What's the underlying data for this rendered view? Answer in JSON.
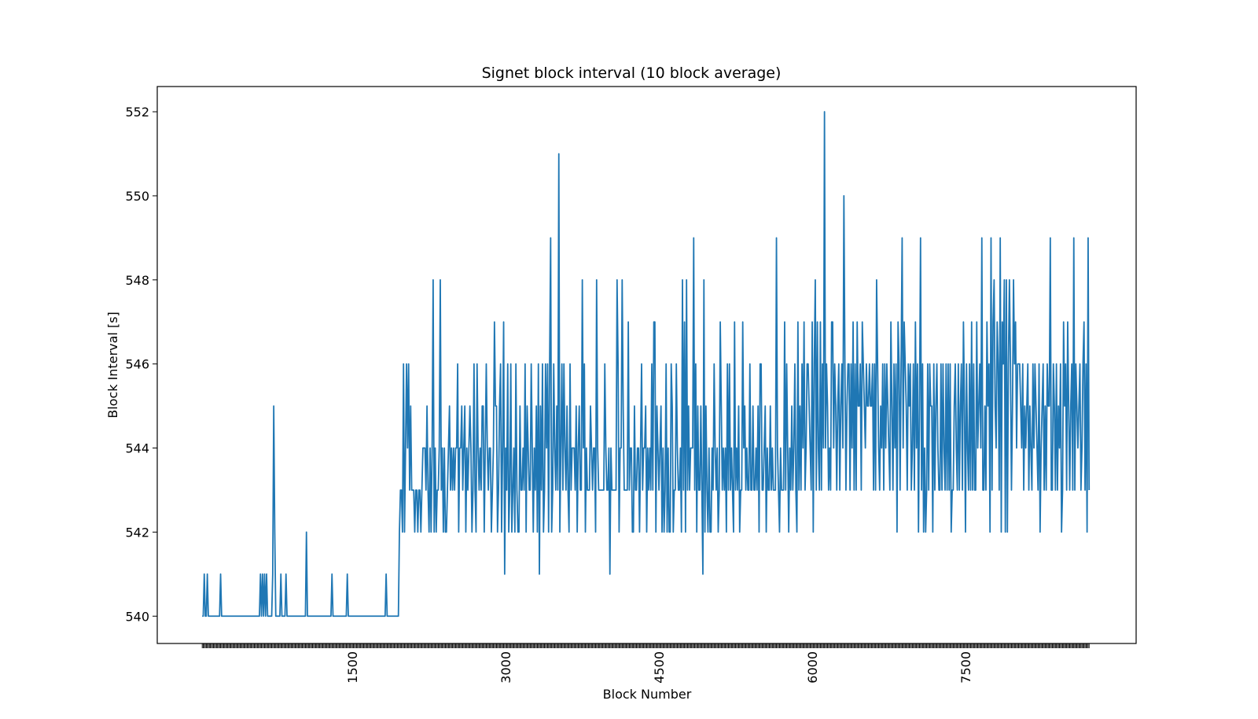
{
  "chart_data": {
    "type": "line",
    "title": "Signet block interval (10 block average)",
    "xlabel": "Block Number",
    "ylabel": "Block Interval [s]",
    "xlim": [
      -410,
      9170
    ],
    "ylim": [
      539.35,
      552.6
    ],
    "xticks": [
      1500,
      3000,
      4500,
      6000,
      7500
    ],
    "xtick_labels": [
      "1500",
      "3000",
      "4500",
      "6000",
      "7500"
    ],
    "yticks": [
      540,
      542,
      544,
      546,
      548,
      550,
      552
    ],
    "ytick_labels": [
      "540",
      "542",
      "544",
      "546",
      "548",
      "550",
      "552"
    ],
    "x_start": 30,
    "x_step": 10,
    "line_color": "#1f77b4",
    "grid": false,
    "series": [
      {
        "values": [
          540,
          540,
          541,
          540,
          540,
          541,
          540,
          540,
          540,
          540,
          540,
          540,
          540,
          540,
          540,
          540,
          540,
          540,
          541,
          540,
          540,
          540,
          540,
          540,
          540,
          540,
          540,
          540,
          540,
          540,
          540,
          540,
          540,
          540,
          540,
          540,
          540,
          540,
          540,
          540,
          540,
          540,
          540,
          540,
          540,
          540,
          540,
          540,
          540,
          540,
          540,
          540,
          540,
          540,
          540,
          540,
          540,
          541,
          540,
          541,
          540,
          541,
          540,
          541,
          540,
          540,
          540,
          540,
          540,
          541,
          545,
          542,
          540,
          540,
          540,
          540,
          540,
          541,
          540,
          540,
          540,
          540,
          541,
          540,
          540,
          540,
          540,
          540,
          540,
          540,
          540,
          540,
          540,
          540,
          540,
          540,
          540,
          540,
          540,
          540,
          540,
          540,
          542,
          540,
          540,
          540,
          540,
          540,
          540,
          540,
          540,
          540,
          540,
          540,
          540,
          540,
          540,
          540,
          540,
          540,
          540,
          540,
          540,
          540,
          540,
          540,
          540,
          541,
          540,
          540,
          540,
          540,
          540,
          540,
          540,
          540,
          540,
          540,
          540,
          540,
          540,
          540,
          541,
          540,
          540,
          540,
          540,
          540,
          540,
          540,
          540,
          540,
          540,
          540,
          540,
          540,
          540,
          540,
          540,
          540,
          540,
          540,
          540,
          540,
          540,
          540,
          540,
          540,
          540,
          540,
          540,
          540,
          540,
          540,
          540,
          540,
          540,
          540,
          540,
          540,
          541,
          540,
          540,
          540,
          540,
          540,
          540,
          540,
          540,
          540,
          540,
          540,
          540,
          542,
          543,
          543,
          542,
          546,
          542,
          544,
          546,
          544,
          546,
          543,
          545,
          543,
          543,
          543,
          542,
          543,
          543,
          542,
          543,
          543,
          542,
          543,
          544,
          544,
          544,
          543,
          545,
          543,
          542,
          544,
          542,
          544,
          548,
          542,
          544,
          542,
          543,
          543,
          544,
          548,
          543,
          544,
          542,
          544,
          542,
          542,
          543,
          544,
          545,
          543,
          544,
          543,
          544,
          543,
          544,
          544,
          546,
          542,
          544,
          544,
          545,
          543,
          544,
          545,
          542,
          544,
          543,
          544,
          545,
          544,
          542,
          543,
          546,
          543,
          542,
          546,
          544,
          543,
          544,
          543,
          545,
          545,
          542,
          544,
          546,
          544,
          543,
          544,
          544,
          542,
          543,
          544,
          547,
          545,
          545,
          542,
          543,
          545,
          546,
          542,
          544,
          547,
          541,
          544,
          543,
          546,
          542,
          543,
          546,
          542,
          543,
          544,
          542,
          546,
          543,
          542,
          542,
          545,
          543,
          543,
          544,
          543,
          546,
          542,
          545,
          544,
          543,
          543,
          546,
          544,
          542,
          544,
          543,
          545,
          542,
          546,
          541,
          545,
          543,
          546,
          542,
          543,
          546,
          544,
          546,
          542,
          546,
          549,
          542,
          543,
          546,
          544,
          543,
          545,
          543,
          551,
          542,
          544,
          546,
          543,
          546,
          544,
          543,
          545,
          543,
          542,
          546,
          543,
          544,
          544,
          544,
          543,
          545,
          542,
          544,
          545,
          543,
          543,
          548,
          544,
          546,
          542,
          544,
          543,
          543,
          543,
          545,
          544,
          543,
          544,
          544,
          542,
          548,
          544,
          543,
          543,
          543,
          543,
          543,
          543,
          546,
          544,
          543,
          543,
          544,
          541,
          544,
          543,
          543,
          543,
          543,
          543,
          548,
          546,
          542,
          544,
          544,
          548,
          545,
          543,
          543,
          543,
          543,
          547,
          543,
          544,
          544,
          542,
          542,
          545,
          543,
          543,
          544,
          544,
          542,
          544,
          546,
          543,
          544,
          544,
          545,
          542,
          544,
          543,
          544,
          543,
          546,
          543,
          547,
          547,
          542,
          545,
          544,
          543,
          544,
          545,
          542,
          544,
          542,
          543,
          546,
          542,
          544,
          542,
          542,
          546,
          545,
          542,
          543,
          543,
          546,
          544,
          543,
          543,
          544,
          542,
          548,
          543,
          547,
          542,
          548,
          543,
          545,
          543,
          544,
          544,
          544,
          549,
          543,
          546,
          542,
          545,
          543,
          543,
          545,
          543,
          541,
          548,
          542,
          545,
          543,
          542,
          544,
          542,
          542,
          544,
          543,
          546,
          544,
          543,
          544,
          542,
          543,
          547,
          545,
          543,
          544,
          543,
          544,
          542,
          546,
          543,
          546,
          543,
          544,
          543,
          542,
          547,
          543,
          544,
          543,
          545,
          542,
          543,
          543,
          547,
          544,
          545,
          543,
          544,
          543,
          543,
          546,
          543,
          543,
          545,
          543,
          543,
          544,
          543,
          545,
          542,
          546,
          546,
          543,
          543,
          544,
          545,
          542,
          544,
          543,
          543,
          545,
          543,
          544,
          543,
          543,
          543,
          549,
          544,
          543,
          542,
          544,
          543,
          543,
          543,
          547,
          543,
          546,
          544,
          542,
          544,
          543,
          545,
          543,
          544,
          546,
          543,
          542,
          547,
          543,
          545,
          543,
          546,
          544,
          547,
          543,
          544,
          546,
          546,
          545,
          544,
          543,
          547,
          542,
          546,
          548,
          543,
          547,
          544,
          543,
          547,
          543,
          546,
          544,
          552,
          544,
          546,
          545,
          543,
          544,
          543,
          547,
          547,
          544,
          546,
          545,
          543,
          545,
          546,
          543,
          545,
          546,
          544,
          550,
          546,
          543,
          545,
          546,
          546,
          543,
          546,
          544,
          547,
          543,
          546,
          543,
          547,
          545,
          545,
          546,
          543,
          547,
          546,
          545,
          544,
          546,
          545,
          545,
          546,
          545,
          545,
          546,
          543,
          546,
          543,
          548,
          546,
          544,
          543,
          545,
          544,
          546,
          543,
          546,
          544,
          546,
          545,
          544,
          543,
          547,
          545,
          543,
          546,
          544,
          546,
          542,
          547,
          546,
          543,
          546,
          549,
          544,
          547,
          546,
          545,
          543,
          546,
          545,
          546,
          543,
          544,
          546,
          543,
          547,
          544,
          546,
          542,
          545,
          549,
          543,
          546,
          542,
          544,
          542,
          543,
          546,
          543,
          546,
          545,
          545,
          542,
          546,
          543,
          545,
          546,
          544,
          543,
          543,
          546,
          543,
          546,
          544,
          543,
          546,
          543,
          546,
          543,
          546,
          542,
          543,
          543,
          545,
          546,
          544,
          543,
          546,
          543,
          545,
          546,
          543,
          547,
          545,
          542,
          546,
          544,
          543,
          546,
          543,
          547,
          543,
          546,
          543,
          543,
          547,
          544,
          545,
          546,
          544,
          549,
          543,
          543,
          545,
          543,
          547,
          545,
          546,
          542,
          549,
          543,
          547,
          548,
          545,
          544,
          547,
          546,
          543,
          549,
          542,
          547,
          546,
          548,
          542,
          548,
          542,
          546,
          548,
          546,
          543,
          545,
          548,
          546,
          547,
          544,
          546,
          546,
          546,
          545,
          544,
          546,
          543,
          545,
          544,
          545,
          546,
          543,
          545,
          544,
          543,
          546,
          544,
          546,
          545,
          544,
          543,
          546,
          542,
          544,
          545,
          546,
          543,
          545,
          543,
          546,
          545,
          545,
          549,
          543,
          543,
          546,
          545,
          543,
          546,
          543,
          545,
          544,
          546,
          542,
          543,
          547,
          545,
          546,
          543,
          547,
          545,
          543,
          545,
          546,
          543,
          549,
          543,
          546,
          545,
          544,
          545,
          546,
          543,
          544,
          546,
          547,
          543,
          546,
          542,
          549,
          543
        ]
      }
    ]
  }
}
